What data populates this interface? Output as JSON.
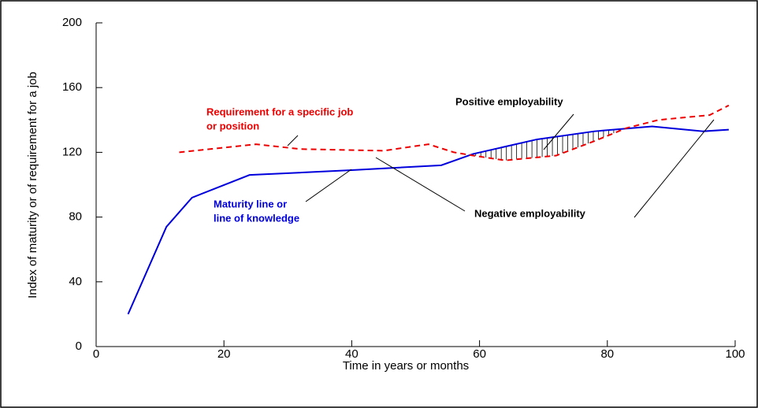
{
  "chart_data": {
    "type": "line",
    "xlabel": "Time in years or months",
    "ylabel": "Index of maturity or of requirement for a job",
    "xlim": [
      0,
      100
    ],
    "xticks": [
      0,
      20,
      40,
      60,
      80,
      100
    ],
    "ylim": [
      0,
      200
    ],
    "yticks": [
      0,
      40,
      80,
      120,
      160,
      200
    ],
    "series": [
      {
        "name": "Maturity line or line of knowledge",
        "color": "#0000dd",
        "dashed": false,
        "x": [
          5,
          11,
          15,
          24,
          40,
          54,
          59,
          69,
          78,
          87,
          95,
          99
        ],
        "values": [
          20,
          74,
          92,
          106,
          109,
          112,
          119,
          128,
          133,
          136,
          133,
          134
        ]
      },
      {
        "name": "Requirement for a specific job or position",
        "color": "#ee0000",
        "dashed": true,
        "x": [
          13,
          25,
          32,
          45,
          52,
          56,
          59,
          64,
          72,
          78,
          83,
          88,
          96,
          99
        ],
        "values": [
          120,
          125,
          122,
          121,
          125,
          120,
          118,
          115,
          118,
          127,
          135,
          140,
          143,
          149
        ]
      }
    ],
    "annotations": [
      {
        "lines": [
          "Requirement for a specific job",
          "or position"
        ],
        "color": "#ee0000"
      },
      {
        "lines": [
          "Positive employability"
        ],
        "color": "#000000"
      },
      {
        "lines": [
          "Negative employability"
        ],
        "color": "#000000"
      },
      {
        "lines": [
          "Maturity line or",
          "line of knowledge"
        ],
        "color": "#0000dd"
      }
    ]
  }
}
